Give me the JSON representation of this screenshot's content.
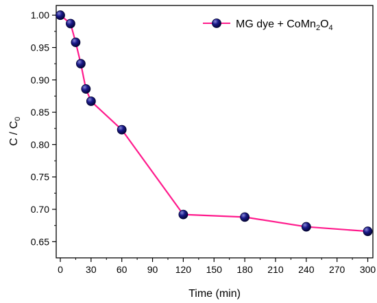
{
  "chart_data": {
    "type": "line",
    "xlabel": "Time (min)",
    "ylabel": "C / C",
    "ylabel_subscript": "0",
    "xlim": [
      -4,
      305
    ],
    "ylim": [
      0.625,
      1.015
    ],
    "xticks": [
      0,
      30,
      60,
      90,
      120,
      150,
      180,
      210,
      240,
      270,
      300
    ],
    "yticks": [
      0.65,
      0.7,
      0.75,
      0.8,
      0.85,
      0.9,
      0.95,
      1.0
    ],
    "ytick_labels": [
      "0.65",
      "0.70",
      "0.75",
      "0.80",
      "0.85",
      "0.90",
      "0.95",
      "1.00"
    ],
    "legend_position": "top-right",
    "series": [
      {
        "name": "MG dye + CoMn2O4",
        "legend_parts": [
          {
            "text": "MG dye + CoMn",
            "sub": false
          },
          {
            "text": "2",
            "sub": true
          },
          {
            "text": "O",
            "sub": false
          },
          {
            "text": "4",
            "sub": true
          }
        ],
        "line_color": "#ff1a8c",
        "marker_color": "#0d0d6e",
        "x": [
          0,
          10,
          15,
          20,
          25,
          30,
          60,
          120,
          180,
          240,
          300
        ],
        "y": [
          1.0,
          0.987,
          0.958,
          0.925,
          0.886,
          0.867,
          0.823,
          0.692,
          0.688,
          0.673,
          0.666
        ]
      }
    ]
  }
}
